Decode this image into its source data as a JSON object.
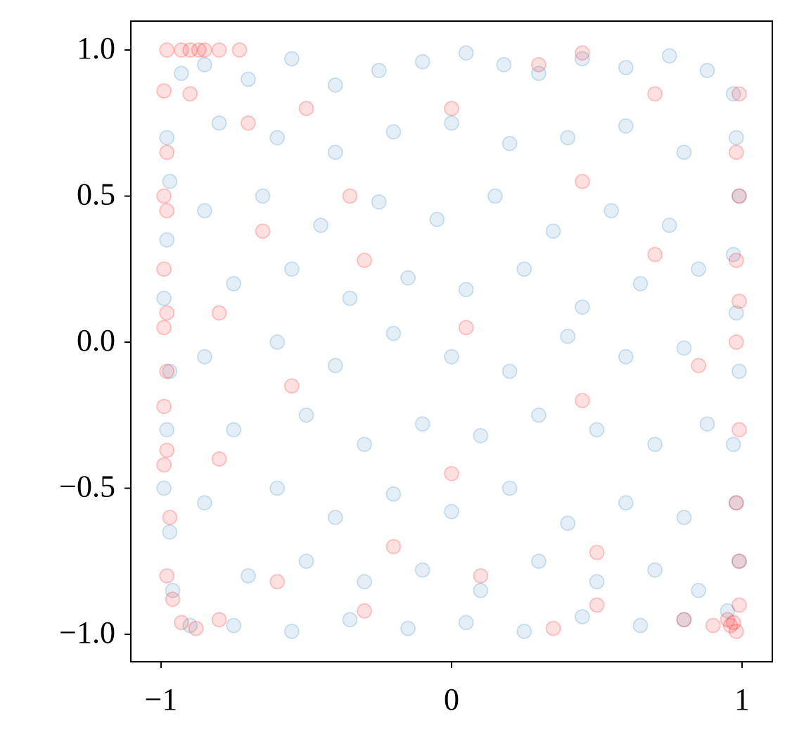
{
  "chart_data": {
    "type": "scatter",
    "xlim": [
      -1.104,
      1.104
    ],
    "ylim": [
      -1.094,
      1.099
    ],
    "xticks": [
      {
        "value": -1,
        "label": "−1"
      },
      0,
      1
    ],
    "yticks": [
      {
        "value": -1.0,
        "label": "−1.0"
      },
      {
        "value": -0.5,
        "label": "−0.5"
      },
      {
        "value": 0.0,
        "label": "0.0"
      },
      {
        "value": 0.5,
        "label": "0.5"
      },
      {
        "value": 1.0,
        "label": "1.0"
      }
    ],
    "grid": false,
    "series": [
      {
        "color": "#1f77b4",
        "alpha": 0.12,
        "x": [
          -0.93,
          -0.85,
          -0.7,
          -0.55,
          -0.4,
          -0.25,
          -0.1,
          0.05,
          0.18,
          0.3,
          0.45,
          0.6,
          0.75,
          0.88,
          0.97,
          -0.98,
          -0.97,
          -0.98,
          -0.99,
          -0.97,
          -0.98,
          -0.99,
          -0.97,
          -0.96,
          -0.9,
          0.98,
          0.99,
          0.97,
          0.98,
          0.99,
          0.97,
          0.98,
          0.99,
          0.95,
          -0.75,
          -0.55,
          -0.35,
          -0.15,
          0.05,
          0.25,
          0.45,
          0.65,
          0.8,
          -0.8,
          -0.6,
          -0.4,
          -0.2,
          0.0,
          0.2,
          0.4,
          0.6,
          0.8,
          -0.85,
          -0.65,
          -0.45,
          -0.25,
          -0.05,
          0.15,
          0.35,
          0.55,
          0.75,
          -0.75,
          -0.55,
          -0.35,
          -0.15,
          0.05,
          0.25,
          0.45,
          0.65,
          0.85,
          -0.85,
          -0.6,
          -0.4,
          -0.2,
          0.0,
          0.2,
          0.4,
          0.6,
          0.8,
          -0.75,
          -0.5,
          -0.3,
          -0.1,
          0.1,
          0.3,
          0.5,
          0.7,
          0.88,
          -0.85,
          -0.6,
          -0.4,
          -0.2,
          0.0,
          0.2,
          0.4,
          0.6,
          0.8,
          -0.7,
          -0.5,
          -0.3,
          -0.1,
          0.1,
          0.3,
          0.5,
          0.7,
          0.85
        ],
        "values": [
          0.92,
          0.95,
          0.9,
          0.97,
          0.88,
          0.93,
          0.96,
          0.99,
          0.95,
          0.92,
          0.97,
          0.94,
          0.98,
          0.93,
          0.85,
          0.7,
          0.55,
          0.35,
          0.15,
          -0.1,
          -0.3,
          -0.5,
          -0.65,
          -0.85,
          -0.97,
          0.7,
          0.5,
          0.3,
          0.1,
          -0.1,
          -0.35,
          -0.55,
          -0.75,
          -0.92,
          -0.97,
          -0.99,
          -0.95,
          -0.98,
          -0.96,
          -0.99,
          -0.94,
          -0.97,
          -0.95,
          0.75,
          0.7,
          0.65,
          0.72,
          0.75,
          0.68,
          0.7,
          0.74,
          0.65,
          0.45,
          0.5,
          0.4,
          0.48,
          0.42,
          0.5,
          0.38,
          0.45,
          0.4,
          0.2,
          0.25,
          0.15,
          0.22,
          0.18,
          0.25,
          0.12,
          0.2,
          0.25,
          -0.05,
          0.0,
          -0.08,
          0.03,
          -0.05,
          -0.1,
          0.02,
          -0.05,
          -0.02,
          -0.3,
          -0.25,
          -0.35,
          -0.28,
          -0.32,
          -0.25,
          -0.3,
          -0.35,
          -0.28,
          -0.55,
          -0.5,
          -0.6,
          -0.52,
          -0.58,
          -0.5,
          -0.62,
          -0.55,
          -0.6,
          -0.8,
          -0.75,
          -0.82,
          -0.78,
          -0.85,
          -0.75,
          -0.82,
          -0.78,
          -0.85
        ]
      },
      {
        "color": "#ff0000",
        "alpha": 0.12,
        "x": [
          -0.98,
          -0.93,
          -0.9,
          -0.87,
          -0.85,
          -0.8,
          -0.73,
          -0.99,
          -0.98,
          -0.99,
          -0.98,
          -0.99,
          -0.98,
          -0.99,
          -0.98,
          -0.99,
          -0.98,
          -0.99,
          -0.97,
          -0.98,
          -0.96,
          -0.93,
          -0.88,
          -0.8,
          0.96,
          0.97,
          0.98,
          0.95,
          0.99,
          0.9,
          0.99,
          0.98,
          0.99,
          0.98,
          0.99,
          0.98,
          0.99,
          0.98,
          0.99,
          -0.9,
          -0.7,
          -0.5,
          0.0,
          0.3,
          0.45,
          0.7,
          -0.35,
          0.45,
          -0.65,
          -0.3,
          0.7,
          -0.8,
          0.05,
          0.85,
          -0.55,
          0.45,
          -0.8,
          0.0,
          -0.2,
          0.5,
          -0.6,
          0.1,
          0.5,
          -0.3,
          0.35,
          0.8
        ],
        "values": [
          1.0,
          1.0,
          1.0,
          1.0,
          1.0,
          1.0,
          1.0,
          0.86,
          0.65,
          0.5,
          0.45,
          0.25,
          0.1,
          0.05,
          -0.1,
          -0.22,
          -0.37,
          -0.42,
          -0.6,
          -0.8,
          -0.88,
          -0.96,
          -0.98,
          -0.95,
          -0.97,
          -0.96,
          -0.99,
          -0.95,
          -0.9,
          -0.97,
          -0.75,
          -0.55,
          -0.3,
          0.0,
          0.14,
          0.28,
          0.5,
          0.65,
          0.85,
          0.85,
          0.75,
          0.8,
          0.8,
          0.95,
          0.99,
          0.85,
          0.5,
          0.55,
          0.38,
          0.28,
          0.3,
          0.1,
          0.05,
          -0.08,
          -0.15,
          -0.2,
          -0.4,
          -0.45,
          -0.7,
          -0.72,
          -0.82,
          -0.8,
          -0.9,
          -0.92,
          -0.98,
          -0.95
        ]
      }
    ]
  }
}
